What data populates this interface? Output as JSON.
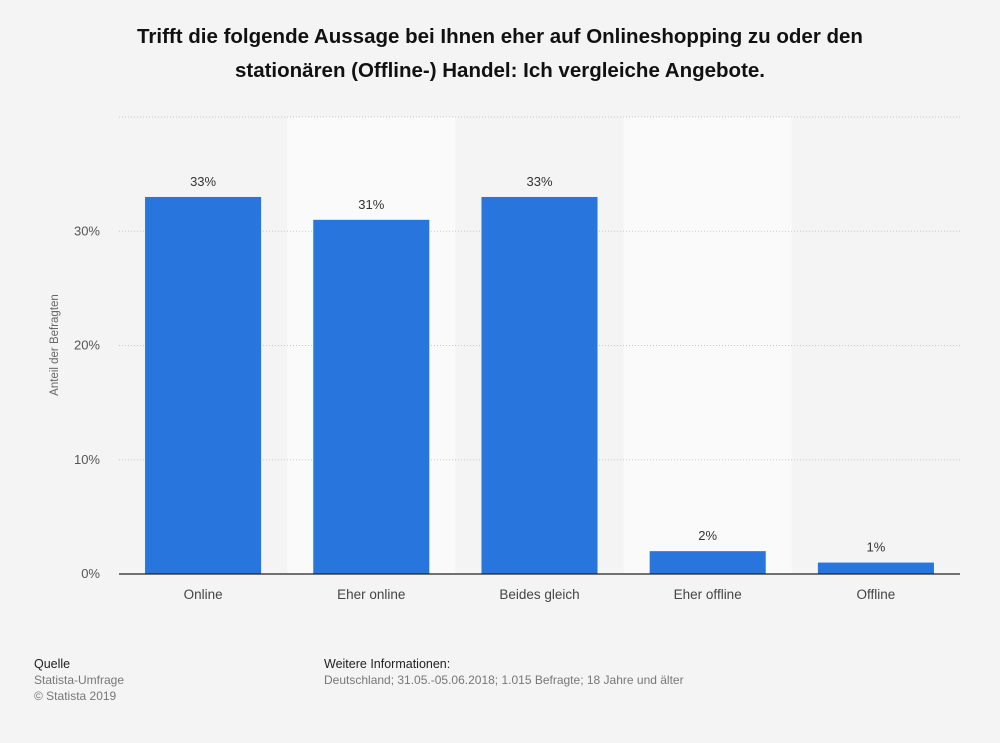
{
  "chart_data": {
    "type": "bar",
    "title": "Trifft die folgende Aussage bei Ihnen eher auf Onlineshopping zu oder den stationären (Offline-) Handel: Ich vergleiche Angebote.",
    "categories": [
      "Online",
      "Eher online",
      "Beides gleich",
      "Eher offline",
      "Offline"
    ],
    "values": [
      33,
      31,
      33,
      2,
      1
    ],
    "value_labels": [
      "33%",
      "31%",
      "33%",
      "2%",
      "1%"
    ],
    "ylabel": "Anteil der Befragten",
    "ylim": [
      0,
      40
    ],
    "yticks": [
      0,
      10,
      20,
      30
    ],
    "ytick_labels": [
      "0%",
      "10%",
      "20%",
      "30%"
    ],
    "grid": true,
    "bar_color": "#2876dd"
  },
  "footer": {
    "source_heading": "Quelle",
    "source_line1": "Statista-Umfrage",
    "source_line2": "© Statista 2019",
    "info_heading": "Weitere Informationen:",
    "info_text": "Deutschland; 31.05.-05.06.2018; 1.015 Befragte; 18 Jahre und älter"
  }
}
